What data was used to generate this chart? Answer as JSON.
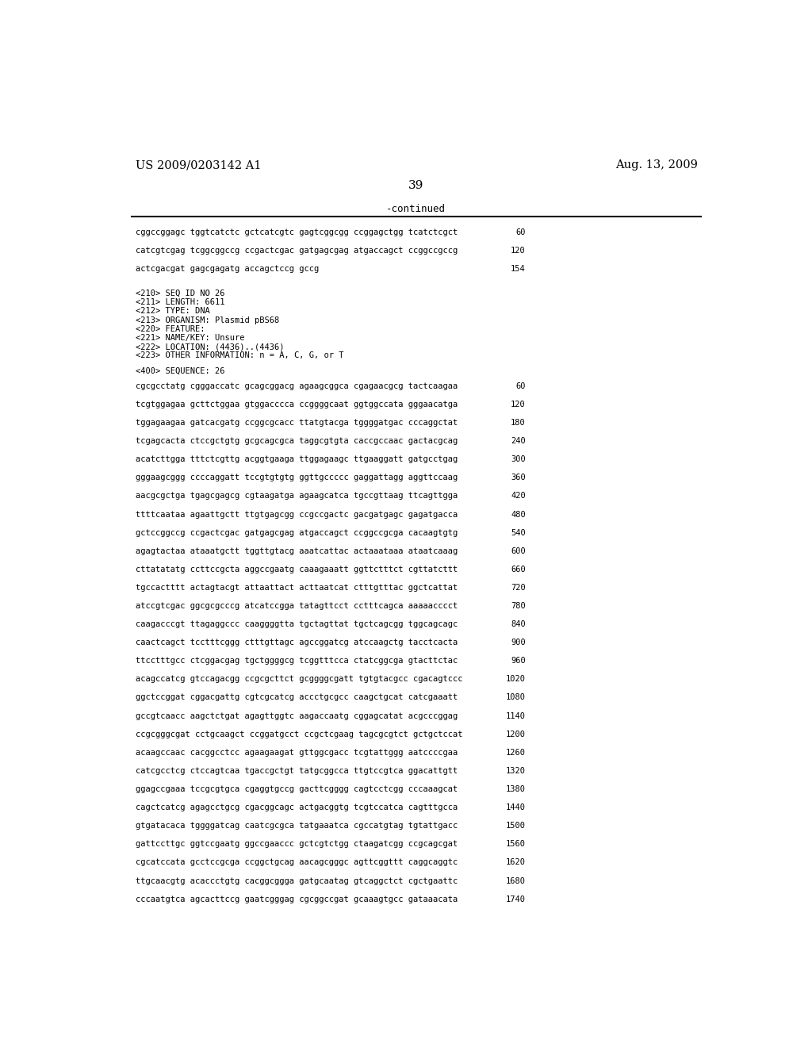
{
  "header_left": "US 2009/0203142 A1",
  "header_right": "Aug. 13, 2009",
  "page_number": "39",
  "continued_text": "-continued",
  "background_color": "#ffffff",
  "text_color": "#000000",
  "content": [
    {
      "type": "seq_line",
      "text": "cggccggagc tggtcatctc gctcatcgtc gagtcggcgg ccggagctgg tcatctcgct",
      "num": "60"
    },
    {
      "type": "blank"
    },
    {
      "type": "seq_line",
      "text": "catcgtcgag tcggcggccg ccgactcgac gatgagcgag atgaccagct ccggccgccg",
      "num": "120"
    },
    {
      "type": "blank"
    },
    {
      "type": "seq_line",
      "text": "actcgacgat gagcgagatg accagctccg gccg",
      "num": "154"
    },
    {
      "type": "blank"
    },
    {
      "type": "blank"
    },
    {
      "type": "meta",
      "text": "<210> SEQ ID NO 26"
    },
    {
      "type": "meta",
      "text": "<211> LENGTH: 6611"
    },
    {
      "type": "meta",
      "text": "<212> TYPE: DNA"
    },
    {
      "type": "meta",
      "text": "<213> ORGANISM: Plasmid pBS68"
    },
    {
      "type": "meta",
      "text": "<220> FEATURE:"
    },
    {
      "type": "meta",
      "text": "<221> NAME/KEY: Unsure"
    },
    {
      "type": "meta",
      "text": "<222> LOCATION: (4436)..(4436)"
    },
    {
      "type": "meta",
      "text": "<223> OTHER INFORMATION: n = A, C, G, or T"
    },
    {
      "type": "blank"
    },
    {
      "type": "meta",
      "text": "<400> SEQUENCE: 26"
    },
    {
      "type": "blank"
    },
    {
      "type": "seq_line",
      "text": "cgcgcctatg cgggaccatc gcagcggacg agaagcggca cgagaacgcg tactcaagaa",
      "num": "60"
    },
    {
      "type": "blank"
    },
    {
      "type": "seq_line",
      "text": "tcgtggagaa gcttctggaa gtggacccca ccggggcaat ggtggccata gggaacatga",
      "num": "120"
    },
    {
      "type": "blank"
    },
    {
      "type": "seq_line",
      "text": "tggagaagaa gatcacgatg ccggcgcacc ttatgtacga tggggatgac cccaggctat",
      "num": "180"
    },
    {
      "type": "blank"
    },
    {
      "type": "seq_line",
      "text": "tcgagcacta ctccgctgtg gcgcagcgca taggcgtgta caccgccaac gactacgcag",
      "num": "240"
    },
    {
      "type": "blank"
    },
    {
      "type": "seq_line",
      "text": "acatcttgga tttctcgttg acggtgaaga ttggagaagc ttgaaggatt gatgcctgag",
      "num": "300"
    },
    {
      "type": "blank"
    },
    {
      "type": "seq_line",
      "text": "gggaagcggg ccccaggatt tccgtgtgtg ggttgccccc gaggattagg aggttccaag",
      "num": "360"
    },
    {
      "type": "blank"
    },
    {
      "type": "seq_line",
      "text": "aacgcgctga tgagcgagcg cgtaagatga agaagcatca tgccgttaag ttcagttgga",
      "num": "420"
    },
    {
      "type": "blank"
    },
    {
      "type": "seq_line",
      "text": "ttttcaataa agaattgctt ttgtgagcgg ccgccgactc gacgatgagc gagatgacca",
      "num": "480"
    },
    {
      "type": "blank"
    },
    {
      "type": "seq_line",
      "text": "gctccggccg ccgactcgac gatgagcgag atgaccagct ccggccgcga cacaagtgtg",
      "num": "540"
    },
    {
      "type": "blank"
    },
    {
      "type": "seq_line",
      "text": "agagtactaa ataaatgctt tggttgtacg aaatcattac actaaataaa ataatcaaag",
      "num": "600"
    },
    {
      "type": "blank"
    },
    {
      "type": "seq_line",
      "text": "cttatatatg ccttccgcta aggccgaatg caaagaaatt ggttctttct cgttatcttt",
      "num": "660"
    },
    {
      "type": "blank"
    },
    {
      "type": "seq_line",
      "text": "tgccactttt actagtacgt attaattact acttaatcat ctttgtttac ggctcattat",
      "num": "720"
    },
    {
      "type": "blank"
    },
    {
      "type": "seq_line",
      "text": "atccgtcgac ggcgcgcccg atcatccgga tatagttcct cctttcagca aaaaacccct",
      "num": "780"
    },
    {
      "type": "blank"
    },
    {
      "type": "seq_line",
      "text": "caagacccgt ttagaggccc caaggggtta tgctagttat tgctcagcgg tggcagcagc",
      "num": "840"
    },
    {
      "type": "blank"
    },
    {
      "type": "seq_line",
      "text": "caactcagct tcctttcggg ctttgttagc agccggatcg atccaagctg tacctcacta",
      "num": "900"
    },
    {
      "type": "blank"
    },
    {
      "type": "seq_line",
      "text": "ttcctttgcc ctcggacgag tgctggggcg tcggtttcca ctatcggcga gtacttctac",
      "num": "960"
    },
    {
      "type": "blank"
    },
    {
      "type": "seq_line",
      "text": "acagccatcg gtccagacgg ccgcgcttct gcggggcgatt tgtgtacgcc cgacagtccc",
      "num": "1020"
    },
    {
      "type": "blank"
    },
    {
      "type": "seq_line",
      "text": "ggctccggat cggacgattg cgtcgcatcg accctgcgcc caagctgcat catcgaaatt",
      "num": "1080"
    },
    {
      "type": "blank"
    },
    {
      "type": "seq_line",
      "text": "gccgtcaacc aagctctgat agagttggtc aagaccaatg cggagcatat acgcccggag",
      "num": "1140"
    },
    {
      "type": "blank"
    },
    {
      "type": "seq_line",
      "text": "ccgcgggcgat cctgcaagct ccggatgcct ccgctcgaag tagcgcgtct gctgctccat",
      "num": "1200"
    },
    {
      "type": "blank"
    },
    {
      "type": "seq_line",
      "text": "acaagccaac cacggcctcc agaagaagat gttggcgacc tcgtattggg aatccccgaa",
      "num": "1260"
    },
    {
      "type": "blank"
    },
    {
      "type": "seq_line",
      "text": "catcgcctcg ctccagtcaa tgaccgctgt tatgcggcca ttgtccgtca ggacattgtt",
      "num": "1320"
    },
    {
      "type": "blank"
    },
    {
      "type": "seq_line",
      "text": "ggagccgaaa tccgcgtgca cgaggtgccg gacttcgggg cagtcctcgg cccaaagcat",
      "num": "1380"
    },
    {
      "type": "blank"
    },
    {
      "type": "seq_line",
      "text": "cagctcatcg agagcctgcg cgacggcagc actgacggtg tcgtccatca cagtttgcca",
      "num": "1440"
    },
    {
      "type": "blank"
    },
    {
      "type": "seq_line",
      "text": "gtgatacaca tggggatcag caatcgcgca tatgaaatca cgccatgtag tgtattgacc",
      "num": "1500"
    },
    {
      "type": "blank"
    },
    {
      "type": "seq_line",
      "text": "gattccttgc ggtccgaatg ggccgaaccc gctcgtctgg ctaagatcgg ccgcagcgat",
      "num": "1560"
    },
    {
      "type": "blank"
    },
    {
      "type": "seq_line",
      "text": "cgcatccata gcctccgcga ccggctgcag aacagcgggc agttcggttt caggcaggtc",
      "num": "1620"
    },
    {
      "type": "blank"
    },
    {
      "type": "seq_line",
      "text": "ttgcaacgtg acaccctgtg cacggcggga gatgcaatag gtcaggctct cgctgaattc",
      "num": "1680"
    },
    {
      "type": "blank"
    },
    {
      "type": "seq_line",
      "text": "cccaatgtca agcacttccg gaatcgggag cgcggccgat gcaaagtgcc gataaacata",
      "num": "1740"
    }
  ]
}
